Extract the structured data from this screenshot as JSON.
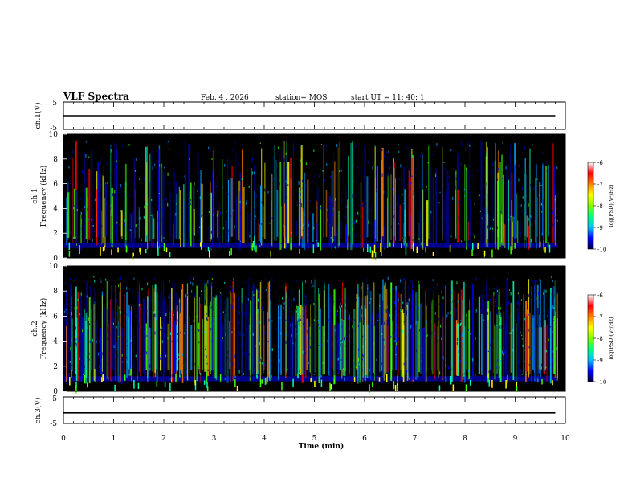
{
  "header": {
    "title": "VLF Spectra",
    "date": "Feb. 4 , 2026",
    "station": "station= MOS",
    "start_ut": "start UT = 11: 40: 1"
  },
  "chart_data": [
    {
      "type": "line",
      "ylabel": "ch.1(V)",
      "ylim": [
        -5,
        5
      ],
      "yticks": [
        "5",
        "-5"
      ],
      "xlim": [
        0,
        10
      ],
      "series": [
        {
          "values_hint": "flat near 0 V",
          "x": [
            0,
            9.8
          ],
          "y": [
            0,
            0
          ]
        }
      ]
    },
    {
      "type": "heatmap",
      "ylabel": "ch.1\nFrequency (kHz)",
      "ylabel_lines": [
        "ch.1",
        "Frequency (kHz)"
      ],
      "ylim": [
        0,
        10
      ],
      "yticks": [
        "0",
        "2",
        "4",
        "6",
        "8",
        "10"
      ],
      "xlim": [
        0,
        10
      ],
      "colorbar": {
        "label": "log(PSD)(V²/Hz)",
        "ticks": [
          "-6",
          "-7",
          "-8",
          "-9",
          "-10"
        ],
        "range": [
          -10,
          -6
        ]
      }
    },
    {
      "type": "heatmap",
      "ylabel": "ch.2\nFrequency (kHz)",
      "ylabel_lines": [
        "ch.2",
        "Frequency (kHz)"
      ],
      "ylim": [
        0,
        10
      ],
      "yticks": [
        "0",
        "2",
        "4",
        "6",
        "8",
        "10"
      ],
      "xlim": [
        0,
        10
      ],
      "colorbar": {
        "label": "log(PSD)(V²/Hz)",
        "ticks": [
          "-6",
          "-7",
          "-8",
          "-9",
          "-10"
        ],
        "range": [
          -10,
          -6
        ]
      }
    },
    {
      "type": "line",
      "ylabel": "ch.3(V)",
      "ylim": [
        -5,
        5
      ],
      "yticks": [
        "5",
        "-5"
      ],
      "xlim": [
        0,
        10
      ],
      "xlabel": "Time (min)",
      "xticks": [
        "0",
        "1",
        "2",
        "3",
        "4",
        "5",
        "6",
        "7",
        "8",
        "9",
        "10"
      ],
      "series": [
        {
          "x": [
            0,
            9.8
          ],
          "y": [
            -1,
            -1
          ]
        }
      ]
    }
  ],
  "colors": {
    "background": "#000000",
    "colormap": [
      "#000080",
      "#0000ff",
      "#00a0ff",
      "#00ffb0",
      "#40ff00",
      "#ffff00",
      "#ff8000",
      "#ff0000",
      "#ffffff"
    ]
  }
}
